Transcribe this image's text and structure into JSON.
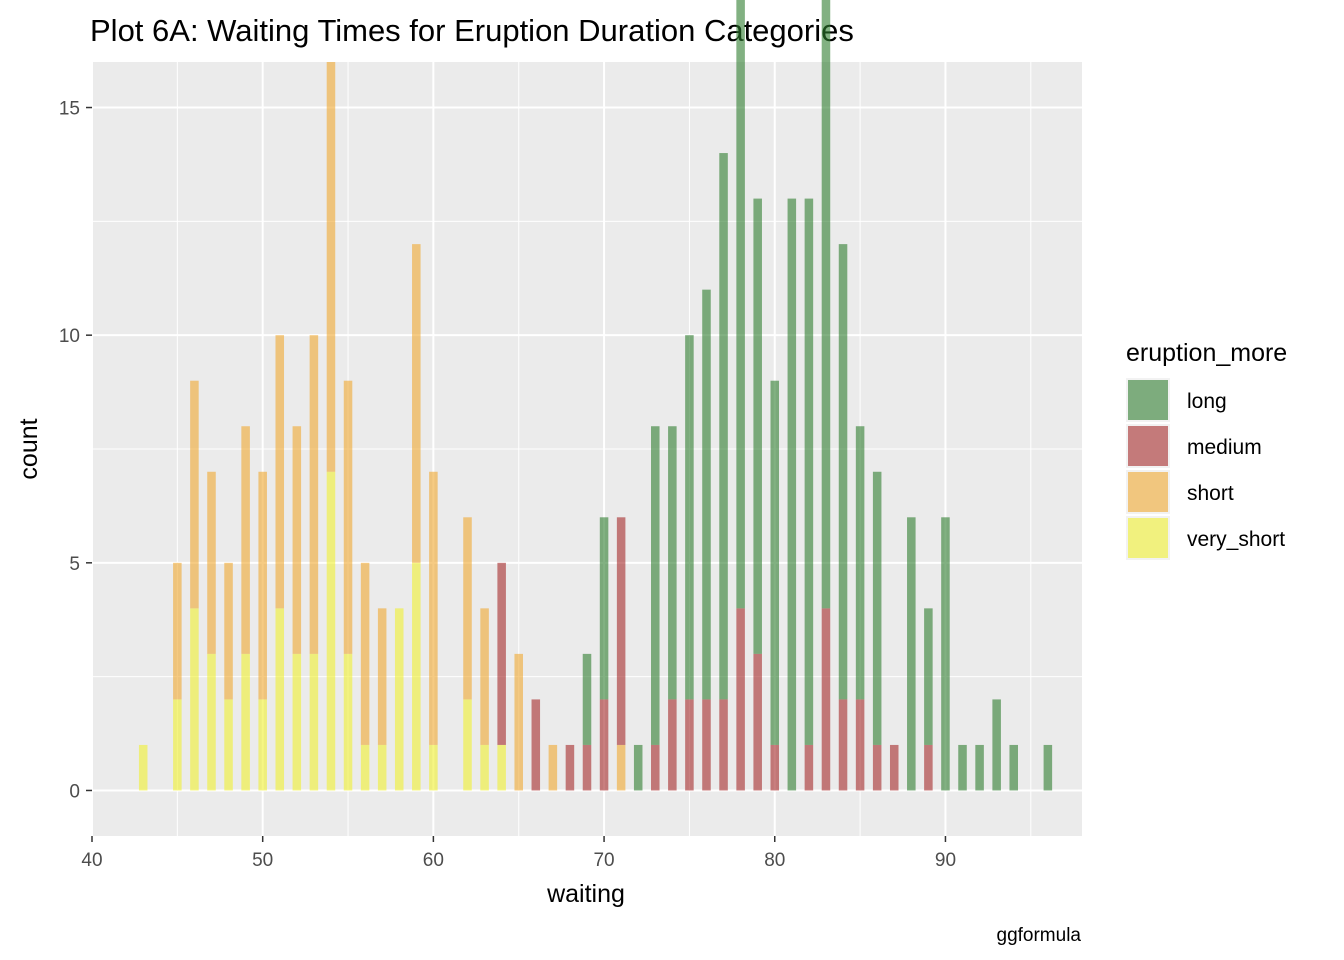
{
  "chart_data": {
    "type": "bar",
    "stacked": true,
    "title": "Plot 6A: Waiting Times for Eruption Duration Categories",
    "xlabel": "waiting",
    "ylabel": "count",
    "caption": "ggformula",
    "xlim": [
      40,
      98
    ],
    "ylim": [
      -1,
      16
    ],
    "xticks": [
      40,
      50,
      60,
      70,
      80,
      90
    ],
    "yticks": [
      0,
      5,
      10,
      15
    ],
    "bin_width": 1,
    "grid": true,
    "legend": {
      "title": "eruption_more",
      "position": "right"
    },
    "series": [
      {
        "name": "long",
        "color": "#2E7D2E",
        "points": [
          [
            69,
            2
          ],
          [
            70,
            4
          ],
          [
            72,
            1
          ],
          [
            73,
            7
          ],
          [
            74,
            6
          ],
          [
            75,
            8
          ],
          [
            76,
            9
          ],
          [
            77,
            12
          ],
          [
            78,
            15
          ],
          [
            79,
            10
          ],
          [
            80,
            8
          ],
          [
            81,
            13
          ],
          [
            82,
            12
          ],
          [
            83,
            14
          ],
          [
            84,
            10
          ],
          [
            85,
            6
          ],
          [
            86,
            6
          ],
          [
            88,
            6
          ],
          [
            89,
            3
          ],
          [
            90,
            6
          ],
          [
            91,
            1
          ],
          [
            92,
            1
          ],
          [
            93,
            2
          ],
          [
            94,
            1
          ],
          [
            96,
            1
          ]
        ]
      },
      {
        "name": "medium",
        "color": "#A52A2A",
        "points": [
          [
            64,
            4
          ],
          [
            66,
            2
          ],
          [
            68,
            1
          ],
          [
            69,
            1
          ],
          [
            70,
            2
          ],
          [
            71,
            5
          ],
          [
            73,
            1
          ],
          [
            74,
            2
          ],
          [
            75,
            2
          ],
          [
            76,
            2
          ],
          [
            77,
            2
          ],
          [
            78,
            4
          ],
          [
            79,
            3
          ],
          [
            80,
            1
          ],
          [
            82,
            1
          ],
          [
            83,
            4
          ],
          [
            84,
            2
          ],
          [
            85,
            2
          ],
          [
            86,
            1
          ],
          [
            87,
            1
          ],
          [
            89,
            1
          ]
        ]
      },
      {
        "name": "short",
        "color": "#F0A830",
        "points": [
          [
            45,
            3
          ],
          [
            46,
            5
          ],
          [
            47,
            4
          ],
          [
            48,
            3
          ],
          [
            49,
            5
          ],
          [
            50,
            5
          ],
          [
            51,
            6
          ],
          [
            52,
            5
          ],
          [
            53,
            7
          ],
          [
            54,
            9
          ],
          [
            55,
            6
          ],
          [
            56,
            4
          ],
          [
            57,
            3
          ],
          [
            59,
            7
          ],
          [
            60,
            6
          ],
          [
            62,
            4
          ],
          [
            63,
            3
          ],
          [
            65,
            3
          ],
          [
            67,
            1
          ],
          [
            71,
            1
          ]
        ]
      },
      {
        "name": "very_short",
        "color": "#F0F030",
        "points": [
          [
            43,
            1
          ],
          [
            45,
            2
          ],
          [
            46,
            4
          ],
          [
            47,
            3
          ],
          [
            48,
            2
          ],
          [
            49,
            3
          ],
          [
            50,
            2
          ],
          [
            51,
            4
          ],
          [
            52,
            3
          ],
          [
            53,
            3
          ],
          [
            54,
            7
          ],
          [
            55,
            3
          ],
          [
            56,
            1
          ],
          [
            57,
            1
          ],
          [
            58,
            4
          ],
          [
            59,
            5
          ],
          [
            60,
            1
          ],
          [
            62,
            2
          ],
          [
            63,
            1
          ],
          [
            64,
            1
          ]
        ]
      }
    ],
    "legend_order": [
      "long",
      "medium",
      "short",
      "very_short"
    ],
    "stack_order": [
      "very_short",
      "short",
      "medium",
      "long"
    ]
  }
}
